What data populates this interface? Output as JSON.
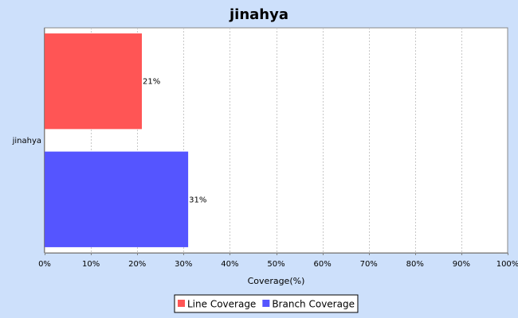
{
  "chart_data": {
    "type": "bar",
    "orientation": "horizontal",
    "title": "jinahya",
    "categories": [
      "jinahya"
    ],
    "series": [
      {
        "name": "Line Coverage",
        "values": [
          21
        ],
        "color": "#ff5555",
        "label": "21%"
      },
      {
        "name": "Branch Coverage",
        "values": [
          31
        ],
        "color": "#5555ff",
        "label": "31%"
      }
    ],
    "xlabel": "Coverage(%)",
    "ylabel": "",
    "xlim": [
      0,
      100
    ],
    "xticks": [
      0,
      10,
      20,
      30,
      40,
      50,
      60,
      70,
      80,
      90,
      100
    ],
    "xtick_labels": [
      "0%",
      "10%",
      "20%",
      "30%",
      "40%",
      "50%",
      "60%",
      "70%",
      "80%",
      "90%",
      "100%"
    ],
    "grid": true,
    "legend_position": "bottom"
  },
  "colors": {
    "background": "#cde0fb",
    "plot_background": "#ffffff",
    "gridline": "#c8c8c8"
  }
}
